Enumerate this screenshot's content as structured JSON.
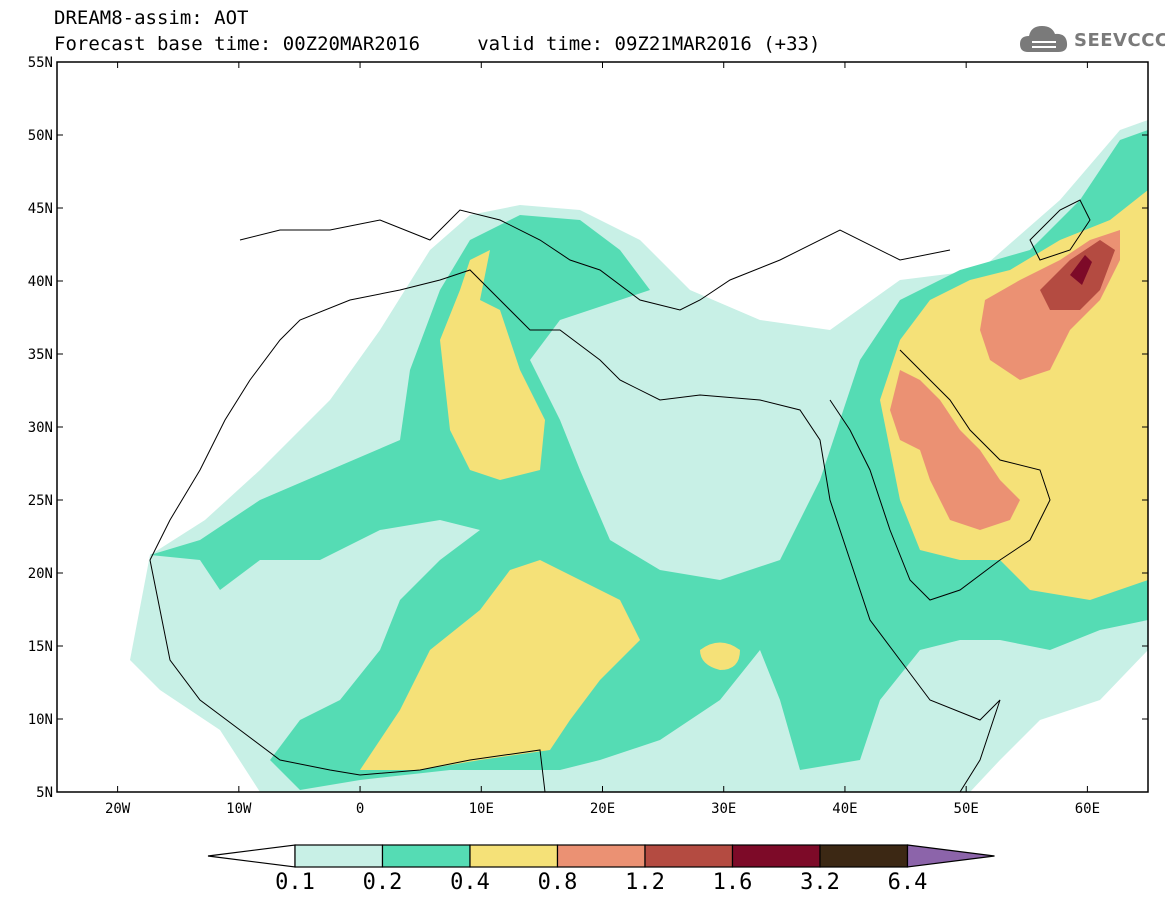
{
  "header": {
    "line1": "DREAM8-assim: AOT",
    "line2": "Forecast base time: 00Z20MAR2016     valid time: 09Z21MAR2016 (+33)",
    "logo_text": "SEEVCCC"
  },
  "map": {
    "lon_range": [
      -25,
      65
    ],
    "lat_range": [
      5,
      55
    ],
    "x_ticks": [
      {
        "value": -20,
        "label": "20W"
      },
      {
        "value": -10,
        "label": "10W"
      },
      {
        "value": 0,
        "label": "0"
      },
      {
        "value": 10,
        "label": "10E"
      },
      {
        "value": 20,
        "label": "20E"
      },
      {
        "value": 30,
        "label": "30E"
      },
      {
        "value": 40,
        "label": "40E"
      },
      {
        "value": 50,
        "label": "50E"
      },
      {
        "value": 60,
        "label": "60E"
      }
    ],
    "y_ticks": [
      {
        "value": 55,
        "label": "55N"
      },
      {
        "value": 50,
        "label": "50N"
      },
      {
        "value": 45,
        "label": "45N"
      },
      {
        "value": 40,
        "label": "40N"
      },
      {
        "value": 35,
        "label": "35N"
      },
      {
        "value": 30,
        "label": "30N"
      },
      {
        "value": 25,
        "label": "25N"
      },
      {
        "value": 20,
        "label": "20N"
      },
      {
        "value": 15,
        "label": "15N"
      },
      {
        "value": 10,
        "label": "10N"
      },
      {
        "value": 5,
        "label": "5N"
      }
    ]
  },
  "colorbar": {
    "labels": [
      "0.1",
      "0.2",
      "0.4",
      "0.8",
      "1.2",
      "1.6",
      "3.2",
      "6.4"
    ],
    "colors": [
      "#ffffff",
      "#c8f0e6",
      "#55dcb4",
      "#f5e178",
      "#eb9173",
      "#b44b41",
      "#7d0a28",
      "#3c2814",
      "#8c64aa"
    ]
  }
}
